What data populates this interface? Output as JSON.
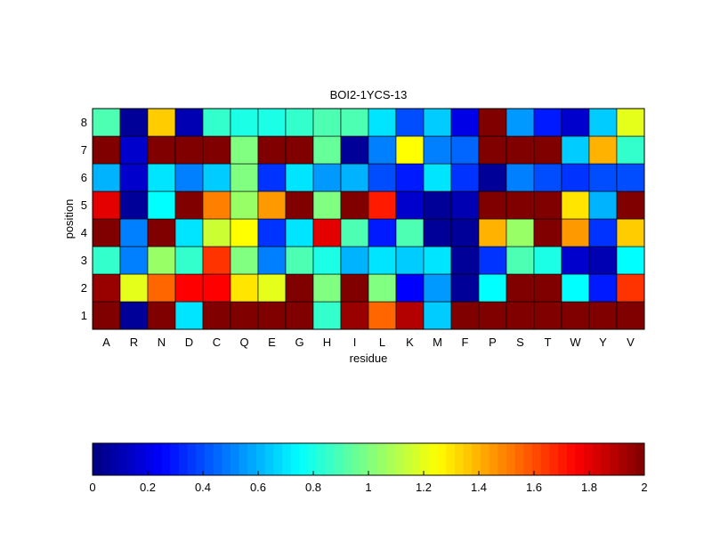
{
  "chart_data": {
    "type": "heatmap",
    "title": "BOI2-1YCS-13",
    "xlabel": "residue",
    "ylabel": "position",
    "x_categories": [
      "A",
      "R",
      "N",
      "D",
      "C",
      "Q",
      "E",
      "G",
      "H",
      "I",
      "L",
      "K",
      "M",
      "F",
      "P",
      "S",
      "T",
      "W",
      "Y",
      "V"
    ],
    "y_categories": [
      "1",
      "2",
      "3",
      "4",
      "5",
      "6",
      "7",
      "8"
    ],
    "values": [
      [
        2.0,
        0.05,
        2.0,
        0.7,
        2.0,
        2.0,
        2.0,
        2.0,
        0.85,
        1.95,
        1.55,
        1.9,
        0.65,
        2.0,
        2.0,
        2.0,
        2.0,
        2.0,
        2.0,
        2.0
      ],
      [
        1.95,
        1.2,
        1.55,
        1.75,
        1.75,
        1.3,
        1.2,
        2.0,
        1.0,
        2.0,
        1.0,
        0.25,
        0.55,
        0.05,
        0.75,
        2.0,
        2.0,
        0.75,
        0.3,
        1.65
      ],
      [
        0.85,
        0.5,
        1.05,
        0.85,
        1.65,
        1.0,
        0.5,
        0.9,
        0.8,
        0.6,
        0.7,
        0.65,
        0.7,
        0.05,
        0.35,
        0.9,
        0.8,
        0.15,
        0.1,
        0.75
      ],
      [
        2.0,
        0.5,
        2.0,
        0.7,
        1.15,
        1.25,
        0.35,
        0.7,
        1.8,
        0.9,
        0.3,
        0.9,
        0.05,
        0.05,
        1.4,
        1.05,
        2.0,
        1.45,
        0.35,
        1.35
      ],
      [
        1.8,
        0.05,
        0.75,
        2.0,
        1.5,
        1.05,
        1.45,
        2.0,
        1.0,
        2.0,
        1.7,
        0.15,
        0.05,
        0.1,
        2.0,
        2.0,
        2.0,
        1.3,
        0.6,
        2.0
      ],
      [
        0.6,
        0.15,
        0.7,
        0.5,
        0.65,
        1.0,
        0.35,
        0.7,
        0.55,
        0.6,
        0.4,
        0.3,
        0.7,
        0.35,
        0.05,
        0.5,
        0.4,
        0.35,
        0.4,
        0.4
      ],
      [
        2.0,
        0.15,
        2.0,
        2.0,
        2.0,
        1.0,
        2.0,
        2.0,
        0.95,
        0.05,
        0.5,
        1.25,
        0.5,
        0.45,
        2.0,
        2.0,
        2.0,
        0.65,
        1.4,
        0.85
      ],
      [
        0.9,
        0.05,
        1.35,
        0.1,
        0.85,
        0.8,
        0.8,
        0.85,
        0.9,
        0.9,
        0.7,
        0.4,
        0.65,
        0.2,
        2.0,
        0.55,
        0.3,
        0.15,
        0.65,
        1.2
      ]
    ],
    "clim": [
      0,
      2
    ],
    "colormap": "jet",
    "colorbar": {
      "orientation": "horizontal",
      "placement": "bottom",
      "ticks": [
        0,
        0.2,
        0.4,
        0.6,
        0.8,
        1,
        1.2,
        1.4,
        1.6,
        1.8,
        2
      ],
      "tick_labels": [
        "0",
        "0.2",
        "0.4",
        "0.6",
        "0.8",
        "1",
        "1.2",
        "1.4",
        "1.6",
        "1.8",
        "2"
      ]
    },
    "grid": false
  }
}
